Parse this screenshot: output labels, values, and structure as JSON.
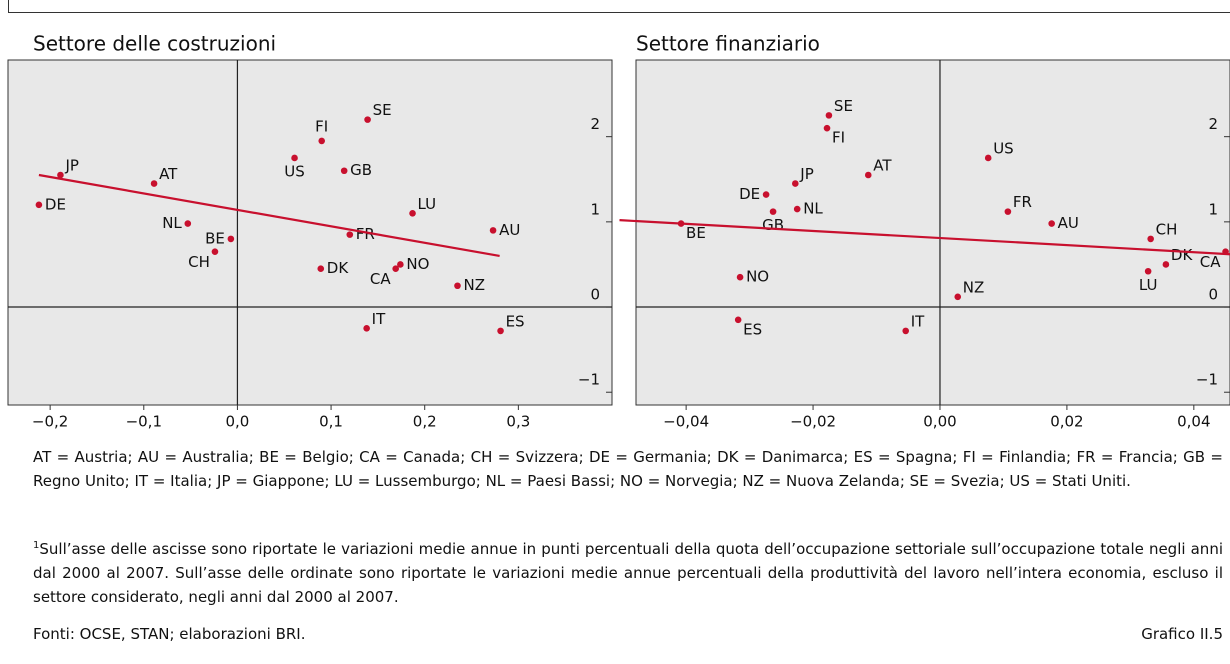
{
  "chart_data": [
    {
      "type": "scatter",
      "title": "Settore delle costruzioni",
      "color": "#c8102e",
      "point_labels": [
        "JP",
        "DE",
        "AT",
        "NL",
        "BE",
        "CH",
        "FI",
        "SE",
        "US",
        "GB",
        "FR",
        "LU",
        "AU",
        "DK",
        "CA",
        "NO",
        "NZ",
        "IT",
        "ES"
      ],
      "x": [
        -0.189,
        -0.212,
        -0.089,
        -0.053,
        -0.007,
        -0.024,
        0.09,
        0.139,
        0.061,
        0.114,
        0.12,
        0.187,
        0.273,
        0.089,
        0.169,
        0.174,
        0.235,
        0.138,
        0.281
      ],
      "values": [
        1.55,
        1.2,
        1.45,
        0.98,
        0.8,
        0.65,
        1.95,
        2.2,
        1.75,
        1.6,
        0.85,
        1.1,
        0.9,
        0.45,
        0.45,
        0.5,
        0.25,
        -0.25,
        -0.28
      ],
      "trend": {
        "color": "#c8102e",
        "x": [
          -0.212,
          0.28
        ],
        "values": [
          1.55,
          0.6
        ]
      },
      "xlim": [
        -0.245,
        0.4
      ],
      "ylim": [
        -1.15,
        2.9
      ],
      "xticks": [
        {
          "value": -0.2,
          "label": "−0,2"
        },
        {
          "value": -0.1,
          "label": "−0,1"
        },
        {
          "value": 0,
          "label": "0,0"
        },
        {
          "value": 0.1,
          "label": "0,1"
        },
        {
          "value": 0.2,
          "label": "0,2"
        },
        {
          "value": 0.3,
          "label": "0,3"
        }
      ],
      "yticks": [
        {
          "value": -1,
          "label": "−1"
        },
        0,
        1,
        2
      ]
    },
    {
      "type": "scatter",
      "title": "Settore finanziario",
      "color": "#c8102e",
      "point_labels": [
        "SE",
        "FI",
        "US",
        "AT",
        "JP",
        "DE",
        "NL",
        "GB",
        "FR",
        "AU",
        "BE",
        "CH",
        "CA",
        "DK",
        "LU",
        "NO",
        "NZ",
        "ES",
        "IT"
      ],
      "x": [
        -0.0175,
        -0.0178,
        0.0076,
        -0.0113,
        -0.0228,
        -0.0274,
        -0.0225,
        -0.0263,
        0.0107,
        0.0176,
        -0.0408,
        0.0332,
        0.045,
        0.0356,
        0.0328,
        -0.0315,
        0.0028,
        -0.0318,
        -0.0054
      ],
      "values": [
        2.25,
        2.1,
        1.75,
        1.55,
        1.45,
        1.32,
        1.15,
        1.12,
        1.12,
        0.98,
        0.98,
        0.8,
        0.65,
        0.5,
        0.42,
        0.35,
        0.12,
        -0.15,
        -0.28
      ],
      "trend": {
        "color": "#c8102e",
        "x": [
          -0.0505,
          0.0457
        ],
        "values": [
          1.02,
          0.62
        ]
      },
      "xlim": [
        -0.0479,
        0.0457
      ],
      "ylim": [
        -1.15,
        2.9
      ],
      "xticks": [
        {
          "value": -0.04,
          "label": "−0,04"
        },
        {
          "value": -0.02,
          "label": "−0,02"
        },
        {
          "value": 0,
          "label": "0,00"
        },
        {
          "value": 0.02,
          "label": "0,02"
        },
        {
          "value": 0.04,
          "label": "0,04"
        }
      ],
      "yticks": [
        {
          "value": -1,
          "label": "−1"
        },
        0,
        1,
        2
      ]
    }
  ],
  "notes": {
    "legend": "AT = Austria; AU = Australia; BE = Belgio; CA = Canada; CH = Svizzera; DE = Germania; DK = Danimarca; ES = Spagna; FI = Finlandia; FR = Francia; GB = Regno Unito; IT = Italia; JP = Giappone; LU = Lussemburgo; NL = Paesi Bassi; NO = Norvegia; NZ = Nuova Zelanda; SE = Svezia; US = Stati Uniti.",
    "footnote_marker": "1",
    "footnote": "Sull’asse delle ascisse sono riportate le variazioni medie annue in punti percentuali della quota dell’occupazione settoriale sull’occupazione totale negli anni dal 2000 al 2007. Sull’asse delle ordinate sono riportate le variazioni medie annue percentuali della produttività del lavoro nell’intera economia, escluso il settore considerato, negli anni dal 2000 al 2007.",
    "sources": "Fonti: OCSE, STAN; elaborazioni BRI.",
    "chart_id": "Grafico II.5"
  }
}
